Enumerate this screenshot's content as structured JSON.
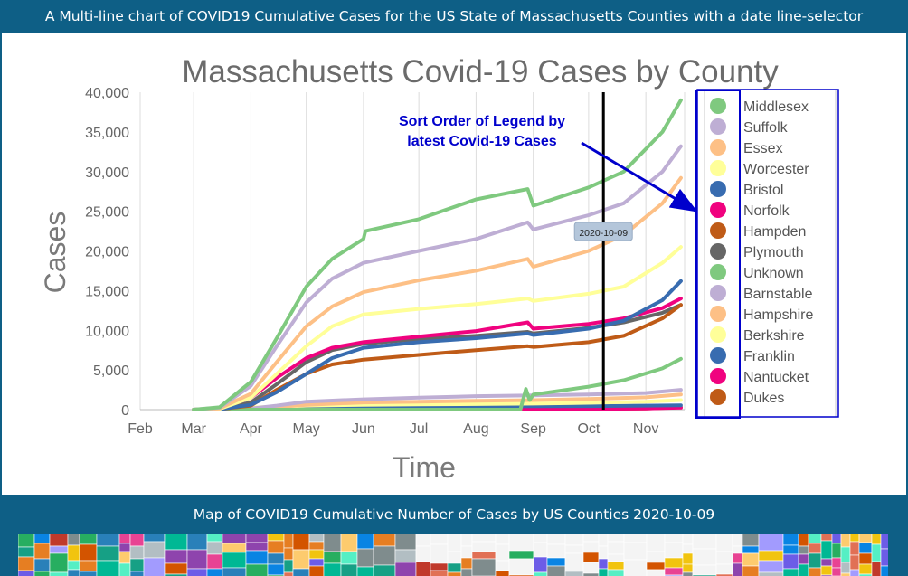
{
  "header": {
    "banner": "A Multi-line chart of COVID19 Cumulative Cases for the US State of Massachusetts Counties with a date line-selector"
  },
  "map_section": {
    "banner": "Map of COVID19 Cumulative Number of Cases by US Counties  2020-10-09"
  },
  "chart_data": {
    "type": "line",
    "title": "Massachusetts Covid-19 Cases by County",
    "xlabel": "Time",
    "ylabel": "Cases",
    "ylim": [
      0,
      40000
    ],
    "xlim": [
      "2020-02-01",
      "2020-11-22"
    ],
    "yticks": [
      0,
      5000,
      10000,
      15000,
      20000,
      25000,
      30000,
      35000,
      40000
    ],
    "ytick_labels": [
      "0",
      "5,000",
      "10,000",
      "15,000",
      "20,000",
      "25,000",
      "30,000",
      "35,000",
      "40,000"
    ],
    "xticks": [
      "2020-02-01",
      "2020-03-01",
      "2020-04-01",
      "2020-05-01",
      "2020-06-01",
      "2020-07-01",
      "2020-08-01",
      "2020-09-01",
      "2020-10-01",
      "2020-11-01"
    ],
    "xtick_labels": [
      "Feb",
      "Mar",
      "Apr",
      "May",
      "Jun",
      "Jul",
      "Aug",
      "Sep",
      "Oct",
      "Nov"
    ],
    "grid": "vertical",
    "legend_position": "right",
    "selector": {
      "date": "2020-10-09",
      "label": "2020-10-09"
    },
    "annotation": {
      "line1": "Sort Order of Legend by",
      "line2": "latest Covid-19 Cases",
      "color": "#0000cc"
    },
    "series": [
      {
        "name": "Middlesex",
        "color": "#7fc97f",
        "points": [
          [
            "2020-03-01",
            0
          ],
          [
            "2020-03-15",
            300
          ],
          [
            "2020-04-01",
            3500
          ],
          [
            "2020-04-15",
            9000
          ],
          [
            "2020-05-01",
            15500
          ],
          [
            "2020-05-15",
            19000
          ],
          [
            "2020-06-01",
            21500
          ],
          [
            "2020-06-02",
            22500
          ],
          [
            "2020-07-01",
            24000
          ],
          [
            "2020-08-01",
            26500
          ],
          [
            "2020-08-29",
            27800
          ],
          [
            "2020-09-01",
            25700
          ],
          [
            "2020-10-01",
            28000
          ],
          [
            "2020-10-20",
            30000
          ],
          [
            "2020-11-10",
            35000
          ],
          [
            "2020-11-20",
            39000
          ]
        ]
      },
      {
        "name": "Suffolk",
        "color": "#beaed4",
        "points": [
          [
            "2020-03-01",
            0
          ],
          [
            "2020-03-15",
            250
          ],
          [
            "2020-04-01",
            3000
          ],
          [
            "2020-04-15",
            8000
          ],
          [
            "2020-05-01",
            13500
          ],
          [
            "2020-05-15",
            16500
          ],
          [
            "2020-06-01",
            18500
          ],
          [
            "2020-07-01",
            20000
          ],
          [
            "2020-08-01",
            21500
          ],
          [
            "2020-08-29",
            23600
          ],
          [
            "2020-09-01",
            22700
          ],
          [
            "2020-10-01",
            24500
          ],
          [
            "2020-10-20",
            26000
          ],
          [
            "2020-11-10",
            30000
          ],
          [
            "2020-11-20",
            33200
          ]
        ]
      },
      {
        "name": "Essex",
        "color": "#fdc086",
        "points": [
          [
            "2020-03-01",
            0
          ],
          [
            "2020-03-15",
            150
          ],
          [
            "2020-04-01",
            2000
          ],
          [
            "2020-04-15",
            6000
          ],
          [
            "2020-05-01",
            10500
          ],
          [
            "2020-05-15",
            13000
          ],
          [
            "2020-06-01",
            14800
          ],
          [
            "2020-07-01",
            16300
          ],
          [
            "2020-08-01",
            17500
          ],
          [
            "2020-08-29",
            19000
          ],
          [
            "2020-09-01",
            18000
          ],
          [
            "2020-10-01",
            20000
          ],
          [
            "2020-10-20",
            22000
          ],
          [
            "2020-11-10",
            26000
          ],
          [
            "2020-11-20",
            29200
          ]
        ]
      },
      {
        "name": "Worcester",
        "color": "#ffff99",
        "points": [
          [
            "2020-03-01",
            0
          ],
          [
            "2020-03-15",
            80
          ],
          [
            "2020-04-01",
            1500
          ],
          [
            "2020-04-15",
            4500
          ],
          [
            "2020-05-01",
            8000
          ],
          [
            "2020-05-15",
            10500
          ],
          [
            "2020-06-01",
            12000
          ],
          [
            "2020-07-01",
            12700
          ],
          [
            "2020-08-01",
            13300
          ],
          [
            "2020-08-29",
            14000
          ],
          [
            "2020-09-01",
            13700
          ],
          [
            "2020-10-01",
            14600
          ],
          [
            "2020-10-20",
            15500
          ],
          [
            "2020-11-10",
            18500
          ],
          [
            "2020-11-20",
            20500
          ]
        ]
      },
      {
        "name": "Bristol",
        "color": "#386cb0",
        "points": [
          [
            "2020-03-01",
            0
          ],
          [
            "2020-03-15",
            50
          ],
          [
            "2020-04-01",
            600
          ],
          [
            "2020-04-15",
            2200
          ],
          [
            "2020-05-01",
            4500
          ],
          [
            "2020-05-15",
            6500
          ],
          [
            "2020-06-01",
            7800
          ],
          [
            "2020-07-01",
            8500
          ],
          [
            "2020-08-01",
            9000
          ],
          [
            "2020-08-29",
            9600
          ],
          [
            "2020-09-01",
            9400
          ],
          [
            "2020-10-01",
            10200
          ],
          [
            "2020-10-20",
            11200
          ],
          [
            "2020-11-10",
            13800
          ],
          [
            "2020-11-20",
            16200
          ]
        ]
      },
      {
        "name": "Norfolk",
        "color": "#f0027f",
        "points": [
          [
            "2020-03-01",
            0
          ],
          [
            "2020-03-15",
            120
          ],
          [
            "2020-04-01",
            1500
          ],
          [
            "2020-04-15",
            4000
          ],
          [
            "2020-05-01",
            6500
          ],
          [
            "2020-05-15",
            7800
          ],
          [
            "2020-06-01",
            8500
          ],
          [
            "2020-07-01",
            9200
          ],
          [
            "2020-08-01",
            9900
          ],
          [
            "2020-08-29",
            11000
          ],
          [
            "2020-09-01",
            10200
          ],
          [
            "2020-10-01",
            10800
          ],
          [
            "2020-10-20",
            11500
          ],
          [
            "2020-11-10",
            12800
          ],
          [
            "2020-11-20",
            14000
          ]
        ]
      },
      {
        "name": "Hampden",
        "color": "#bf5b17",
        "points": [
          [
            "2020-03-01",
            0
          ],
          [
            "2020-03-15",
            40
          ],
          [
            "2020-04-01",
            500
          ],
          [
            "2020-04-15",
            2500
          ],
          [
            "2020-05-01",
            4500
          ],
          [
            "2020-05-15",
            5700
          ],
          [
            "2020-06-01",
            6300
          ],
          [
            "2020-07-01",
            6900
          ],
          [
            "2020-08-01",
            7500
          ],
          [
            "2020-08-29",
            8000
          ],
          [
            "2020-09-01",
            7900
          ],
          [
            "2020-10-01",
            8500
          ],
          [
            "2020-10-20",
            9300
          ],
          [
            "2020-11-10",
            11500
          ],
          [
            "2020-11-20",
            13200
          ]
        ]
      },
      {
        "name": "Plymouth",
        "color": "#666666",
        "points": [
          [
            "2020-03-01",
            0
          ],
          [
            "2020-03-15",
            60
          ],
          [
            "2020-04-01",
            900
          ],
          [
            "2020-04-15",
            3200
          ],
          [
            "2020-05-01",
            6000
          ],
          [
            "2020-05-15",
            7500
          ],
          [
            "2020-06-01",
            8300
          ],
          [
            "2020-07-01",
            8900
          ],
          [
            "2020-08-01",
            9300
          ],
          [
            "2020-08-29",
            9800
          ],
          [
            "2020-09-01",
            9600
          ],
          [
            "2020-10-01",
            10300
          ],
          [
            "2020-10-20",
            11000
          ],
          [
            "2020-11-10",
            12200
          ],
          [
            "2020-11-20",
            13200
          ]
        ]
      },
      {
        "name": "Unknown",
        "color": "#7fc97f",
        "points": [
          [
            "2020-03-01",
            0
          ],
          [
            "2020-08-25",
            0
          ],
          [
            "2020-08-28",
            2600
          ],
          [
            "2020-08-30",
            1200
          ],
          [
            "2020-09-01",
            1900
          ],
          [
            "2020-10-01",
            2900
          ],
          [
            "2020-10-20",
            3700
          ],
          [
            "2020-11-10",
            5200
          ],
          [
            "2020-11-20",
            6400
          ]
        ]
      },
      {
        "name": "Barnstable",
        "color": "#beaed4",
        "points": [
          [
            "2020-03-01",
            0
          ],
          [
            "2020-03-15",
            20
          ],
          [
            "2020-04-01",
            150
          ],
          [
            "2020-04-15",
            500
          ],
          [
            "2020-05-01",
            1000
          ],
          [
            "2020-06-01",
            1300
          ],
          [
            "2020-07-01",
            1500
          ],
          [
            "2020-08-01",
            1700
          ],
          [
            "2020-09-01",
            1800
          ],
          [
            "2020-10-01",
            1900
          ],
          [
            "2020-11-01",
            2100
          ],
          [
            "2020-11-20",
            2500
          ]
        ]
      },
      {
        "name": "Hampshire",
        "color": "#fdc086",
        "points": [
          [
            "2020-03-01",
            0
          ],
          [
            "2020-04-01",
            100
          ],
          [
            "2020-05-01",
            600
          ],
          [
            "2020-06-01",
            900
          ],
          [
            "2020-07-01",
            1000
          ],
          [
            "2020-08-01",
            1100
          ],
          [
            "2020-09-01",
            1200
          ],
          [
            "2020-10-01",
            1350
          ],
          [
            "2020-11-01",
            1550
          ],
          [
            "2020-11-20",
            1900
          ]
        ]
      },
      {
        "name": "Berkshire",
        "color": "#ffff99",
        "points": [
          [
            "2020-03-01",
            0
          ],
          [
            "2020-03-15",
            40
          ],
          [
            "2020-04-01",
            250
          ],
          [
            "2020-05-01",
            500
          ],
          [
            "2020-06-01",
            600
          ],
          [
            "2020-07-01",
            650
          ],
          [
            "2020-08-01",
            700
          ],
          [
            "2020-09-01",
            750
          ],
          [
            "2020-10-01",
            850
          ],
          [
            "2020-11-01",
            1000
          ],
          [
            "2020-11-20",
            1200
          ]
        ]
      },
      {
        "name": "Franklin",
        "color": "#386cb0",
        "points": [
          [
            "2020-03-01",
            0
          ],
          [
            "2020-04-01",
            80
          ],
          [
            "2020-05-01",
            300
          ],
          [
            "2020-06-01",
            350
          ],
          [
            "2020-07-01",
            380
          ],
          [
            "2020-08-01",
            400
          ],
          [
            "2020-09-01",
            420
          ],
          [
            "2020-10-01",
            450
          ],
          [
            "2020-11-01",
            500
          ],
          [
            "2020-11-20",
            550
          ]
        ]
      },
      {
        "name": "Nantucket",
        "color": "#f0027f",
        "points": [
          [
            "2020-03-01",
            0
          ],
          [
            "2020-04-01",
            10
          ],
          [
            "2020-05-01",
            20
          ],
          [
            "2020-06-01",
            30
          ],
          [
            "2020-07-01",
            40
          ],
          [
            "2020-08-01",
            60
          ],
          [
            "2020-09-01",
            70
          ],
          [
            "2020-10-01",
            90
          ],
          [
            "2020-11-01",
            150
          ],
          [
            "2020-11-20",
            250
          ]
        ]
      },
      {
        "name": "Dukes",
        "color": "#bf5b17",
        "points": [
          [
            "2020-03-01",
            0
          ],
          [
            "2020-04-01",
            10
          ],
          [
            "2020-05-01",
            15
          ],
          [
            "2020-06-01",
            20
          ],
          [
            "2020-07-01",
            30
          ],
          [
            "2020-08-01",
            50
          ],
          [
            "2020-09-01",
            60
          ],
          [
            "2020-10-01",
            80
          ],
          [
            "2020-11-01",
            140
          ],
          [
            "2020-11-20",
            300
          ]
        ]
      }
    ]
  }
}
